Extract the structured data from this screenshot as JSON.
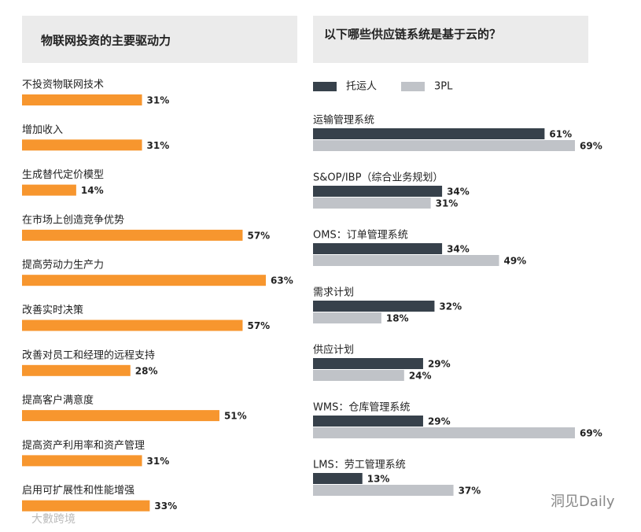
{
  "chart_data": [
    {
      "type": "hbar",
      "title": "物联网投资的主要驱动力",
      "categories": [
        "不投资物联网技术",
        "增加收入",
        "生成替代定价模型",
        "在市场上创造竞争优势",
        "提高劳动力生产力",
        "改善实时决策",
        "改善对员工和经理的远程支持",
        "提高客户满意度",
        "提高资产利用率和资产管理",
        "启用可扩展性和性能增强"
      ],
      "values": [
        31,
        31,
        14,
        57,
        63,
        57,
        28,
        51,
        31,
        33
      ],
      "value_labels": [
        "31%",
        "31%",
        "14%",
        "57%",
        "63%",
        "57%",
        "28%",
        "51%",
        "31%",
        "33%"
      ],
      "color": "#f7962e"
    },
    {
      "type": "grouped-hbar",
      "title": "以下哪些供应链系统是基于云的？",
      "categories": [
        "运输管理系统",
        "S&OP/IBP（综合业务规划）",
        "OMS：订单管理系统",
        "需求计划",
        "供应计划",
        "WMS：仓库管理系统",
        "LMS：劳工管理系统"
      ],
      "series": [
        {
          "name": "托运人",
          "color": "#37414b",
          "values": [
            61,
            34,
            34,
            32,
            29,
            29,
            13
          ],
          "value_labels": [
            "61%",
            "34%",
            "34%",
            "32%",
            "29%",
            "29%",
            "13%"
          ]
        },
        {
          "name": "3PL",
          "color": "#c0c3c8",
          "values": [
            69,
            31,
            49,
            18,
            24,
            69,
            37
          ],
          "value_labels": [
            "69%",
            "31%",
            "49%",
            "18%",
            "24%",
            "69%",
            "37%"
          ]
        }
      ]
    }
  ],
  "watermarks": [
    "洞见Daily",
    "大數跨境"
  ]
}
